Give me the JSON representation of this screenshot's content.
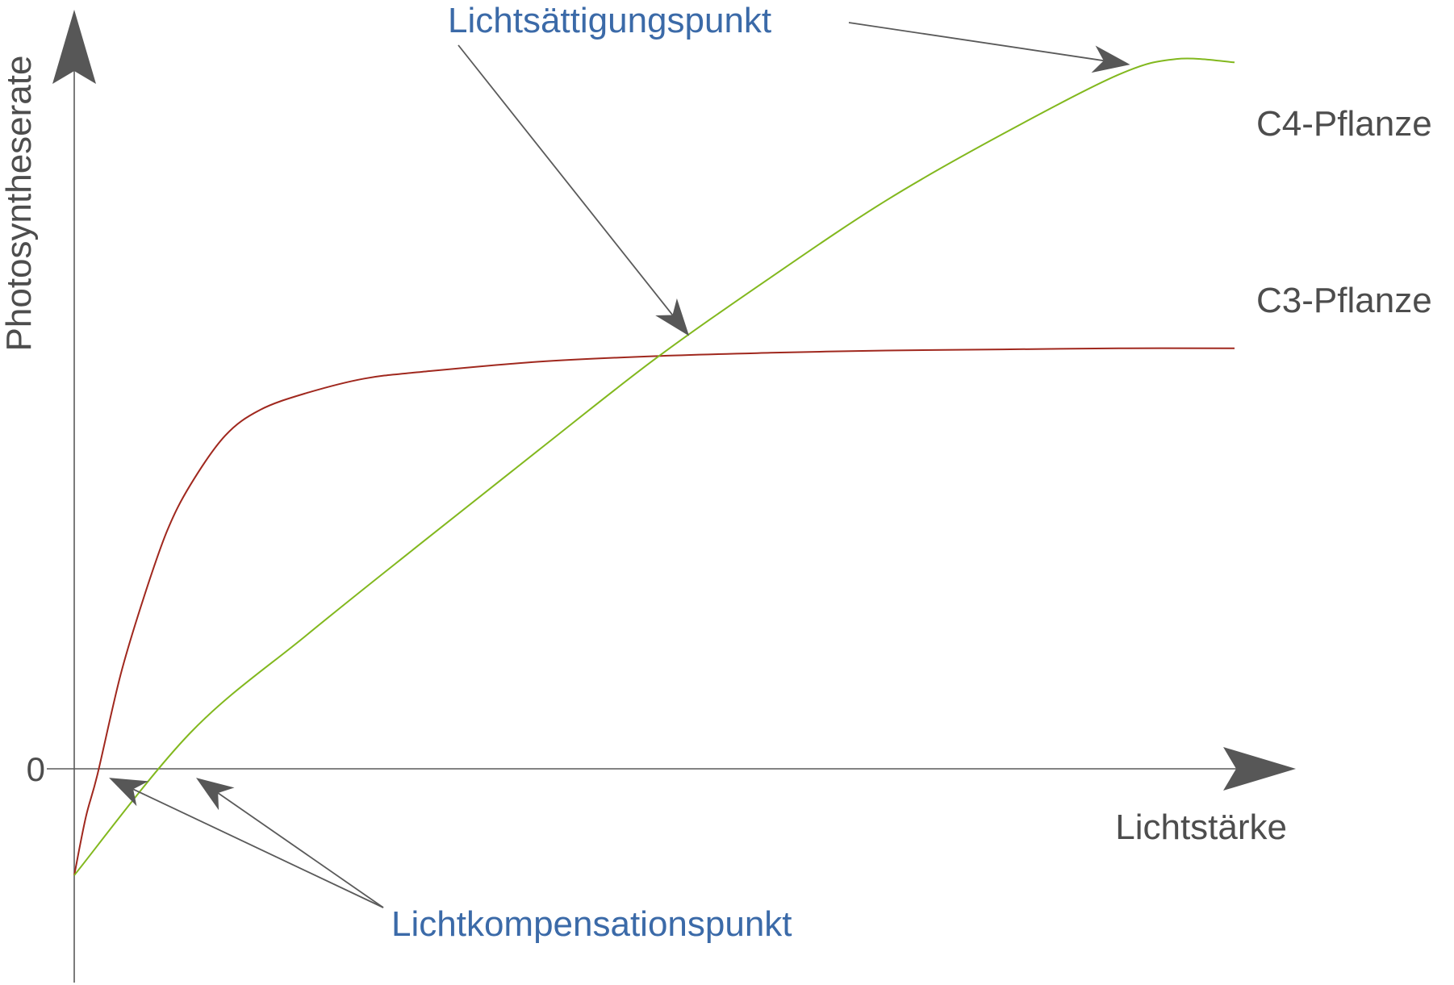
{
  "chart_data": {
    "type": "line",
    "title": "",
    "xlabel": "Lichtstärke",
    "ylabel": "Photosyntheserate",
    "yticks": [
      {
        "value": 0,
        "label": "0"
      }
    ],
    "xlim": [
      0,
      100
    ],
    "ylim": [
      -10,
      60
    ],
    "grid": false,
    "legend": "none",
    "series": [
      {
        "name": "C3-Pflanze",
        "color": "#a0281e",
        "x": [
          0,
          1,
          2,
          4,
          6,
          8,
          10,
          13,
          16,
          20,
          25,
          30,
          40,
          50,
          60,
          70,
          80,
          90,
          100
        ],
        "y": [
          -9.5,
          -4.3,
          -0.5,
          8.4,
          15.3,
          21.2,
          25.3,
          29.7,
          32.0,
          33.5,
          34.8,
          35.4,
          36.3,
          36.8,
          37.1,
          37.3,
          37.4,
          37.5,
          37.5
        ]
      },
      {
        "name": "C4-Pflanze",
        "color": "#82b81e",
        "x": [
          0,
          10,
          20,
          30,
          40,
          50,
          60,
          70,
          80,
          90,
          95,
          100
        ],
        "y": [
          -9.5,
          3.2,
          11.9,
          20.2,
          28.4,
          36.5,
          43.8,
          50.7,
          56.6,
          61.9,
          63.3,
          63.0
        ]
      }
    ],
    "annotations": [
      {
        "id": "saettigung",
        "text": "Lichtsättigungspunkt",
        "color": "#3b6aa8",
        "targets": [
          [
            53,
            38.6
          ],
          [
            91,
            62.8
          ]
        ]
      },
      {
        "id": "kompensation",
        "text": "Lichtkompensationspunkt",
        "color": "#3b6aa8",
        "targets": [
          [
            3,
            -0.8
          ],
          [
            10.5,
            -0.8
          ]
        ]
      }
    ]
  }
}
